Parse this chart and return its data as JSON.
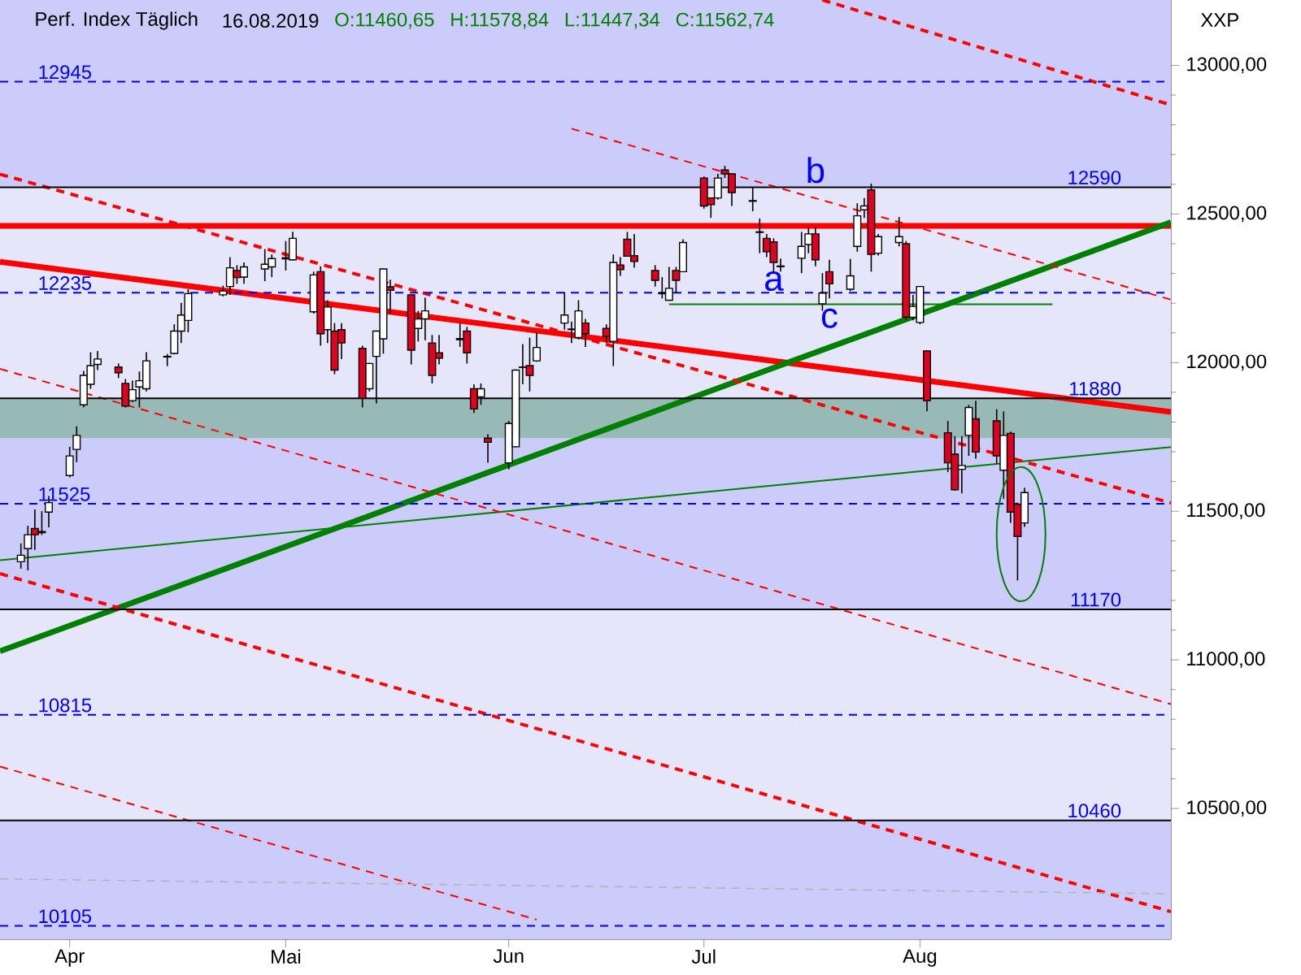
{
  "chart_data": {
    "type": "candlestick",
    "title": "Perf. Index Täglich",
    "subtitle": "16.08.2019",
    "ylabel": "XXP",
    "x": [
      "2019-03-25",
      "2019-03-26",
      "2019-03-27",
      "2019-03-28",
      "2019-03-29",
      "2019-04-01",
      "2019-04-02",
      "2019-04-03",
      "2019-04-04",
      "2019-04-05",
      "2019-04-08",
      "2019-04-09",
      "2019-04-10",
      "2019-04-11",
      "2019-04-12",
      "2019-04-15",
      "2019-04-16",
      "2019-04-17",
      "2019-04-18",
      "2019-04-23",
      "2019-04-24",
      "2019-04-25",
      "2019-04-26",
      "2019-04-29",
      "2019-04-30",
      "2019-05-02",
      "2019-05-03",
      "2019-05-06",
      "2019-05-07",
      "2019-05-08",
      "2019-05-09",
      "2019-05-10",
      "2019-05-13",
      "2019-05-14",
      "2019-05-15",
      "2019-05-16",
      "2019-05-17",
      "2019-05-20",
      "2019-05-21",
      "2019-05-22",
      "2019-05-23",
      "2019-05-24",
      "2019-05-27",
      "2019-05-28",
      "2019-05-29",
      "2019-05-30",
      "2019-05-31",
      "2019-06-03",
      "2019-06-04",
      "2019-06-05",
      "2019-06-06",
      "2019-06-07",
      "2019-06-11",
      "2019-06-12",
      "2019-06-13",
      "2019-06-14",
      "2019-06-17",
      "2019-06-18",
      "2019-06-19",
      "2019-06-20",
      "2019-06-21",
      "2019-06-24",
      "2019-06-25",
      "2019-06-26",
      "2019-06-27",
      "2019-06-28",
      "2019-07-01",
      "2019-07-02",
      "2019-07-03",
      "2019-07-04",
      "2019-07-05",
      "2019-07-08",
      "2019-07-09",
      "2019-07-10",
      "2019-07-11",
      "2019-07-12",
      "2019-07-15",
      "2019-07-16",
      "2019-07-17",
      "2019-07-18",
      "2019-07-19",
      "2019-07-22",
      "2019-07-23",
      "2019-07-24",
      "2019-07-25",
      "2019-07-26",
      "2019-07-29",
      "2019-07-30",
      "2019-07-31",
      "2019-08-01",
      "2019-08-02",
      "2019-08-05",
      "2019-08-06",
      "2019-08-07",
      "2019-08-08",
      "2019-08-09",
      "2019-08-12",
      "2019-08-13",
      "2019-08-14",
      "2019-08-15",
      "2019-08-16"
    ],
    "ohlc": [
      [
        11330,
        11392,
        11307,
        11352
      ],
      [
        11374,
        11451,
        11301,
        11421
      ],
      [
        11442,
        11506,
        11370,
        11421
      ],
      [
        11432,
        11500,
        11420,
        11428
      ],
      [
        11497,
        11551,
        11446,
        11529
      ],
      [
        11620,
        11717,
        11614,
        11686
      ],
      [
        11708,
        11786,
        11665,
        11755
      ],
      [
        11858,
        11972,
        11850,
        11957
      ],
      [
        11927,
        12035,
        11912,
        11990
      ],
      [
        11994,
        12039,
        11975,
        12012
      ],
      [
        11985,
        11997,
        11948,
        11966
      ],
      [
        11930,
        11945,
        11849,
        11854
      ],
      [
        11872,
        11939,
        11867,
        11909
      ],
      [
        11918,
        11970,
        11849,
        11939
      ],
      [
        11912,
        12035,
        11903,
        12006
      ],
      [
        12019,
        12029,
        11988,
        12021
      ],
      [
        12031,
        12129,
        12028,
        12106
      ],
      [
        12106,
        12201,
        12066,
        12160
      ],
      [
        12142,
        12247,
        12102,
        12232
      ],
      [
        12228,
        12259,
        12223,
        12241
      ],
      [
        12256,
        12355,
        12228,
        12319
      ],
      [
        12310,
        12328,
        12265,
        12286
      ],
      [
        12288,
        12337,
        12265,
        12322
      ],
      [
        12315,
        12382,
        12274,
        12331
      ],
      [
        12322,
        12364,
        12288,
        12350
      ],
      [
        12353,
        12409,
        12310,
        12349
      ],
      [
        12346,
        12440,
        12344,
        12418
      ],
      [
        12171,
        12306,
        12165,
        12295
      ],
      [
        12306,
        12324,
        12057,
        12097
      ],
      [
        12111,
        12210,
        12066,
        12187
      ],
      [
        12106,
        12133,
        11961,
        11975
      ],
      [
        12111,
        12133,
        12012,
        12066
      ],
      [
        12048,
        12057,
        11849,
        11880
      ],
      [
        11912,
        11999,
        11903,
        11997
      ],
      [
        12021,
        12108,
        11863,
        12106
      ],
      [
        12080,
        12317,
        12030,
        12315
      ],
      [
        12255,
        12279,
        12165,
        12243
      ],
      [
        12228,
        12230,
        11994,
        12042
      ],
      [
        12115,
        12174,
        12071,
        12147
      ],
      [
        12147,
        12219,
        12075,
        12174
      ],
      [
        12066,
        12093,
        11930,
        11957
      ],
      [
        12033,
        12093,
        11994,
        12015
      ],
      [
        12081,
        12133,
        12053,
        12077
      ],
      [
        12106,
        12120,
        11997,
        12033
      ],
      [
        11912,
        11927,
        11831,
        11844
      ],
      [
        11885,
        11930,
        11858,
        11912
      ],
      [
        11746,
        11759,
        11663,
        11732
      ],
      [
        11663,
        11804,
        11641,
        11795
      ],
      [
        11717,
        11977,
        11715,
        11975
      ],
      [
        11984,
        12062,
        11927,
        11985
      ],
      [
        11990,
        12084,
        11903,
        11957
      ],
      [
        12006,
        12102,
        12003,
        12051
      ],
      [
        12133,
        12237,
        12111,
        12160
      ],
      [
        12111,
        12138,
        12066,
        12113
      ],
      [
        12084,
        12210,
        12078,
        12174
      ],
      [
        12133,
        12147,
        12053,
        12097
      ],
      [
        12115,
        12129,
        12066,
        12088
      ],
      [
        12071,
        12364,
        11988,
        12337
      ],
      [
        12328,
        12355,
        12292,
        12313
      ],
      [
        12415,
        12440,
        12356,
        12358
      ],
      [
        12360,
        12433,
        12319,
        12340
      ],
      [
        12310,
        12328,
        12256,
        12277
      ],
      [
        12234,
        12288,
        12216,
        12232
      ],
      [
        12210,
        12322,
        12208,
        12250
      ],
      [
        12310,
        12322,
        12234,
        12277
      ],
      [
        12306,
        12415,
        12304,
        12404
      ],
      [
        12621,
        12626,
        12518,
        12527
      ],
      [
        12554,
        12556,
        12487,
        12532
      ],
      [
        12554,
        12635,
        12548,
        12621
      ],
      [
        12648,
        12662,
        12621,
        12635
      ],
      [
        12635,
        12637,
        12527,
        12572
      ],
      [
        12545,
        12590,
        12509,
        12543
      ],
      [
        12438,
        12485,
        12368,
        12440
      ],
      [
        12418,
        12433,
        12355,
        12373
      ],
      [
        12406,
        12418,
        12306,
        12337
      ],
      [
        12325,
        12350,
        12306,
        12323
      ],
      [
        12351,
        12440,
        12301,
        12391
      ],
      [
        12397,
        12454,
        12368,
        12433
      ],
      [
        12433,
        12454,
        12324,
        12346
      ],
      [
        12198,
        12301,
        12174,
        12234
      ],
      [
        12306,
        12346,
        12216,
        12265
      ],
      [
        12247,
        12349,
        12241,
        12292
      ],
      [
        12391,
        12536,
        12373,
        12494
      ],
      [
        12514,
        12554,
        12487,
        12527
      ],
      [
        12581,
        12602,
        12306,
        12364
      ],
      [
        12368,
        12433,
        12360,
        12424
      ],
      [
        12404,
        12490,
        12391,
        12424
      ],
      [
        12400,
        12409,
        12144,
        12153
      ],
      [
        12153,
        12228,
        12142,
        12189
      ],
      [
        12135,
        12258,
        12129,
        12256
      ],
      [
        12039,
        12041,
        11836,
        11872
      ],
      [
        11764,
        11804,
        11632,
        11663
      ],
      [
        11692,
        11753,
        11569,
        11572
      ],
      [
        11641,
        11753,
        11560,
        11654
      ],
      [
        11755,
        11858,
        11686,
        11849
      ],
      [
        11811,
        11872,
        11677,
        11699
      ],
      [
        11804,
        11843,
        11659,
        11686
      ],
      [
        11638,
        11836,
        11542,
        11755
      ],
      [
        11762,
        11768,
        11461,
        11497
      ],
      [
        11524,
        11529,
        11267,
        11415
      ],
      [
        11460.65,
        11578.84,
        11447.34,
        11562.74
      ]
    ],
    "xlim": [
      "2019-03-22",
      "2019-09-06"
    ],
    "xticks": [
      {
        "value": "2019-04-01",
        "label": "Apr"
      },
      {
        "value": "2019-05-02",
        "label": "Mai"
      },
      {
        "value": "2019-06-03",
        "label": "Jun"
      },
      {
        "value": "2019-07-01",
        "label": "Jul"
      },
      {
        "value": "2019-08-01",
        "label": "Aug"
      }
    ],
    "ylim": [
      10060,
      13220
    ],
    "yticks": [
      {
        "value": 10500,
        "label": "10500,00"
      },
      {
        "value": 11000,
        "label": "11000,00"
      },
      {
        "value": 11500,
        "label": "11500,00"
      },
      {
        "value": 12000,
        "label": "12000,00"
      },
      {
        "value": 12500,
        "label": "12500,00"
      },
      {
        "value": 13000,
        "label": "13000,00"
      }
    ],
    "bands": [
      {
        "axis": "y",
        "from": 12590,
        "to": 13220,
        "color": "#ccccfa"
      },
      {
        "axis": "y",
        "from": 11880,
        "to": 12590,
        "color": "#e6e6fa"
      },
      {
        "axis": "y",
        "from": 11170,
        "to": 11880,
        "color": "#ccccfa"
      },
      {
        "axis": "y",
        "from": 10460,
        "to": 11170,
        "color": "#e6e6fa"
      },
      {
        "axis": "y",
        "from": 10060,
        "to": 10460,
        "color": "#ccccfa"
      },
      {
        "axis": "y",
        "from": 11746,
        "to": 11880,
        "color": "#98bab6"
      }
    ],
    "series": [
      {
        "type": "line",
        "x": [
          "2019-03-22",
          "2019-09-06"
        ],
        "values": [
          12460,
          12460
        ],
        "color": "#ff0000",
        "line_style": "solid"
      },
      {
        "type": "line",
        "x": [
          "2019-03-22",
          "2019-09-06"
        ],
        "values": [
          12339,
          11834
        ],
        "color": "#ff0000",
        "line_style": "solid"
      },
      {
        "type": "line",
        "x": [
          "2019-03-22",
          "2019-09-06"
        ],
        "values": [
          11029,
          12472
        ],
        "color": "#008000",
        "line_style": "solid"
      },
      {
        "type": "line",
        "x": [
          "2019-03-22",
          "2019-09-06"
        ],
        "values": [
          11335,
          11716
        ],
        "color": "#008000",
        "line_style": "solid"
      },
      {
        "type": "line",
        "x": [
          "2019-06-26",
          "2019-08-20"
        ],
        "values": [
          12196,
          12196
        ],
        "color": "#008000",
        "line_style": "solid"
      },
      {
        "type": "line",
        "x": [
          "2019-07-18",
          "2019-09-06"
        ],
        "values": [
          13220,
          12867
        ],
        "color": "#ff0000",
        "line_style": "dashed"
      },
      {
        "type": "line",
        "x": [
          "2019-03-22",
          "2019-09-06"
        ],
        "values": [
          12634,
          11528
        ],
        "color": "#ff0000",
        "line_style": "dashed"
      },
      {
        "type": "line",
        "x": [
          "2019-03-22",
          "2019-09-06"
        ],
        "values": [
          11290,
          10153
        ],
        "color": "#ff0000",
        "line_style": "dashed"
      },
      {
        "type": "line",
        "x": [
          "2019-06-12",
          "2019-09-06"
        ],
        "values": [
          12787,
          12212
        ],
        "color": "#ff0000",
        "line_style": "dashed"
      },
      {
        "type": "line",
        "x": [
          "2019-03-22",
          "2019-09-06"
        ],
        "values": [
          11979,
          10851
        ],
        "color": "#ff0000",
        "line_style": "dashed"
      },
      {
        "type": "line",
        "x": [
          "2019-03-22",
          "2019-06-07"
        ],
        "values": [
          10641,
          10126
        ],
        "color": "#ff0000",
        "line_style": "dashed"
      },
      {
        "type": "line",
        "x": [
          "2019-03-22",
          "2019-09-06"
        ],
        "values": [
          10263,
          10213
        ],
        "color": "#b4b4b4",
        "line_style": "dashed"
      }
    ],
    "ref_lines": [
      {
        "axis": "y",
        "value": 12945,
        "label": "12945",
        "color": "#0000ff",
        "line_style": "dashed"
      },
      {
        "axis": "y",
        "value": 12590,
        "label": "12590",
        "color": "#000000",
        "line_style": "solid"
      },
      {
        "axis": "y",
        "value": 12235,
        "label": "12235",
        "color": "#0000ff",
        "line_style": "dashed"
      },
      {
        "axis": "y",
        "value": 11880,
        "label": "11880",
        "color": "#000000",
        "line_style": "solid"
      },
      {
        "axis": "y",
        "value": 11525,
        "label": "11525",
        "color": "#0000ff",
        "line_style": "dashed"
      },
      {
        "axis": "y",
        "value": 11170,
        "label": "11170",
        "color": "#000000",
        "line_style": "solid"
      },
      {
        "axis": "y",
        "value": 10815,
        "label": "10815",
        "color": "#0000ff",
        "line_style": "dashed"
      },
      {
        "axis": "y",
        "value": 10460,
        "label": "10460",
        "color": "#000000",
        "line_style": "solid"
      },
      {
        "axis": "y",
        "value": 10105,
        "label": "10105",
        "color": "#0000ff",
        "line_style": "dashed"
      }
    ],
    "annotations": [
      "O:11460,65",
      "H:11578,84",
      "L:11447,34",
      "C:11562,74",
      "a",
      "b",
      "c"
    ]
  }
}
